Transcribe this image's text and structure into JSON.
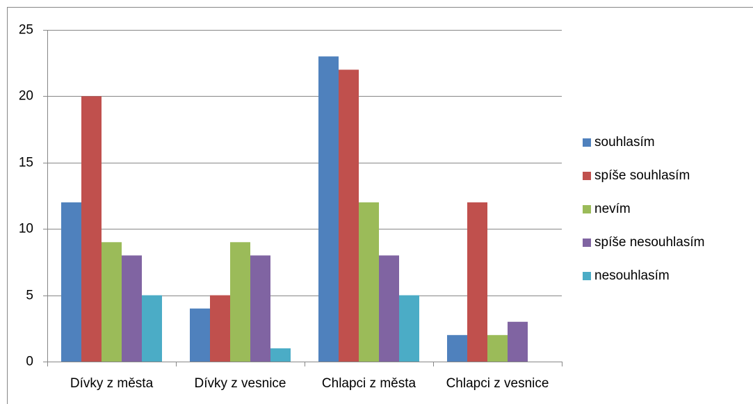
{
  "chart_data": {
    "type": "bar",
    "categories": [
      "Dívky z města",
      "Dívky z vesnice",
      "Chlapci z města",
      "Chlapci z vesnice"
    ],
    "series": [
      {
        "name": "souhlasím",
        "color": "#4f81bd",
        "values": [
          12,
          4,
          23,
          2
        ]
      },
      {
        "name": "spíše souhlasím",
        "color": "#c0504d",
        "values": [
          20,
          5,
          22,
          12
        ]
      },
      {
        "name": "nevím",
        "color": "#9bbb59",
        "values": [
          9,
          9,
          12,
          2
        ]
      },
      {
        "name": "spíše nesouhlasím",
        "color": "#8064a2",
        "values": [
          8,
          8,
          8,
          3
        ]
      },
      {
        "name": "nesouhlasím",
        "color": "#4bacc6",
        "values": [
          5,
          1,
          5,
          0
        ]
      }
    ],
    "ylim": [
      0,
      25
    ],
    "yticks": [
      0,
      5,
      10,
      15,
      20,
      25
    ],
    "grid": true,
    "legend": "right"
  }
}
